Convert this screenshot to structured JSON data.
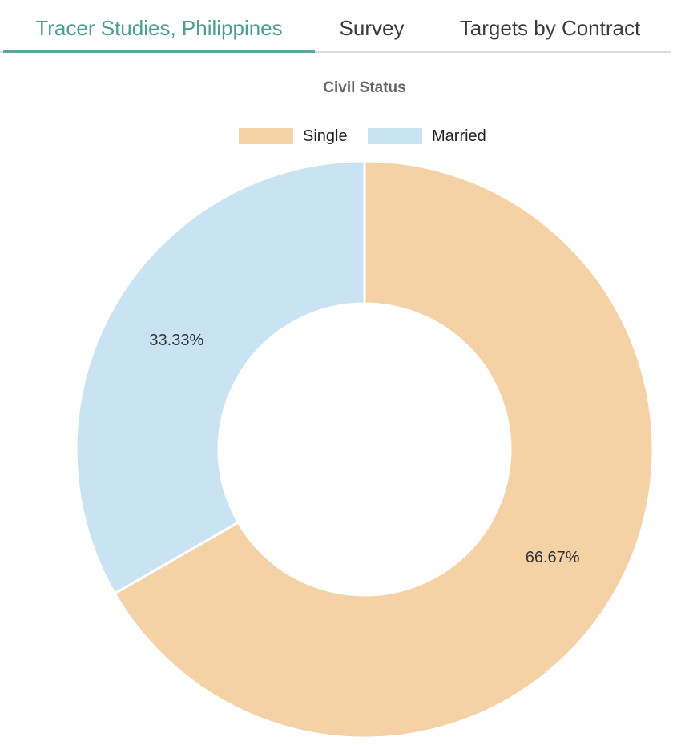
{
  "tabs": [
    {
      "label": "Tracer Studies, Philippines",
      "active": true
    },
    {
      "label": "Survey",
      "active": false
    },
    {
      "label": "Targets by Contract",
      "active": false
    }
  ],
  "colors": {
    "active_tab": "#4e9e93",
    "single": "#f5d1a6",
    "married": "#c9e3f2"
  },
  "chart_data": {
    "type": "pie",
    "variant": "doughnut",
    "title": "Civil Status",
    "legend_position": "top",
    "slices": [
      {
        "label": "Single",
        "value": 66.67,
        "display": "66.67%",
        "color": "#f5d1a6"
      },
      {
        "label": "Married",
        "value": 33.33,
        "display": "33.33%",
        "color": "#c9e3f2"
      }
    ]
  }
}
